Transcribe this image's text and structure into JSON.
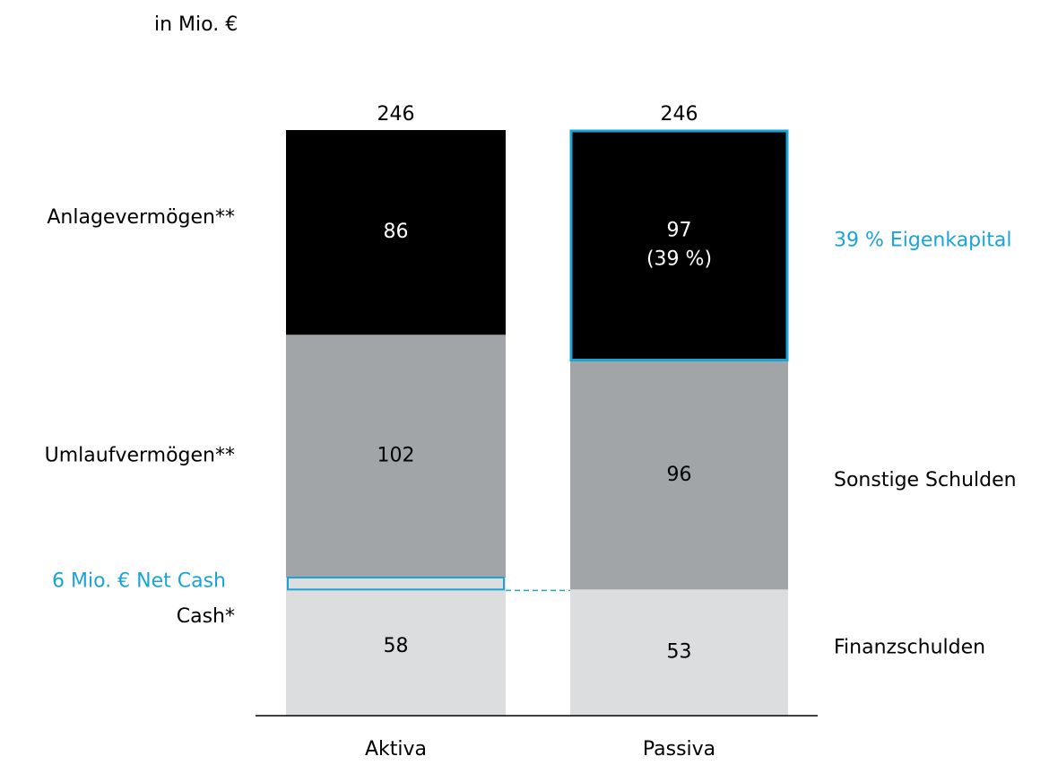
{
  "chart_data": {
    "type": "stacked_bar",
    "unit": "in Mio. €",
    "accent_color": "#1ba3d8",
    "bars": [
      {
        "category": "Aktiva",
        "total": 246,
        "segments": [
          {
            "name": "Cash*",
            "value": 58,
            "color": "#dcdddf"
          },
          {
            "name": "Umlaufvermögen**",
            "value": 102,
            "color": "#a2a5a8"
          },
          {
            "name": "Anlagevermögen**",
            "value": 86,
            "color": "#000000"
          }
        ]
      },
      {
        "category": "Passiva",
        "total": 246,
        "segments": [
          {
            "name": "Finanzschulden",
            "value": 53,
            "color": "#dcdddf"
          },
          {
            "name": "Sonstige Schulden",
            "value": 96,
            "color": "#a2a5a8"
          },
          {
            "name": "39 % Eigenkapital",
            "value": 97,
            "color": "#000000",
            "share_label": "(39 %)",
            "highlight": true
          }
        ]
      }
    ],
    "annotation": "6 Mio. € Net Cash",
    "ylim": [
      0,
      246
    ]
  }
}
